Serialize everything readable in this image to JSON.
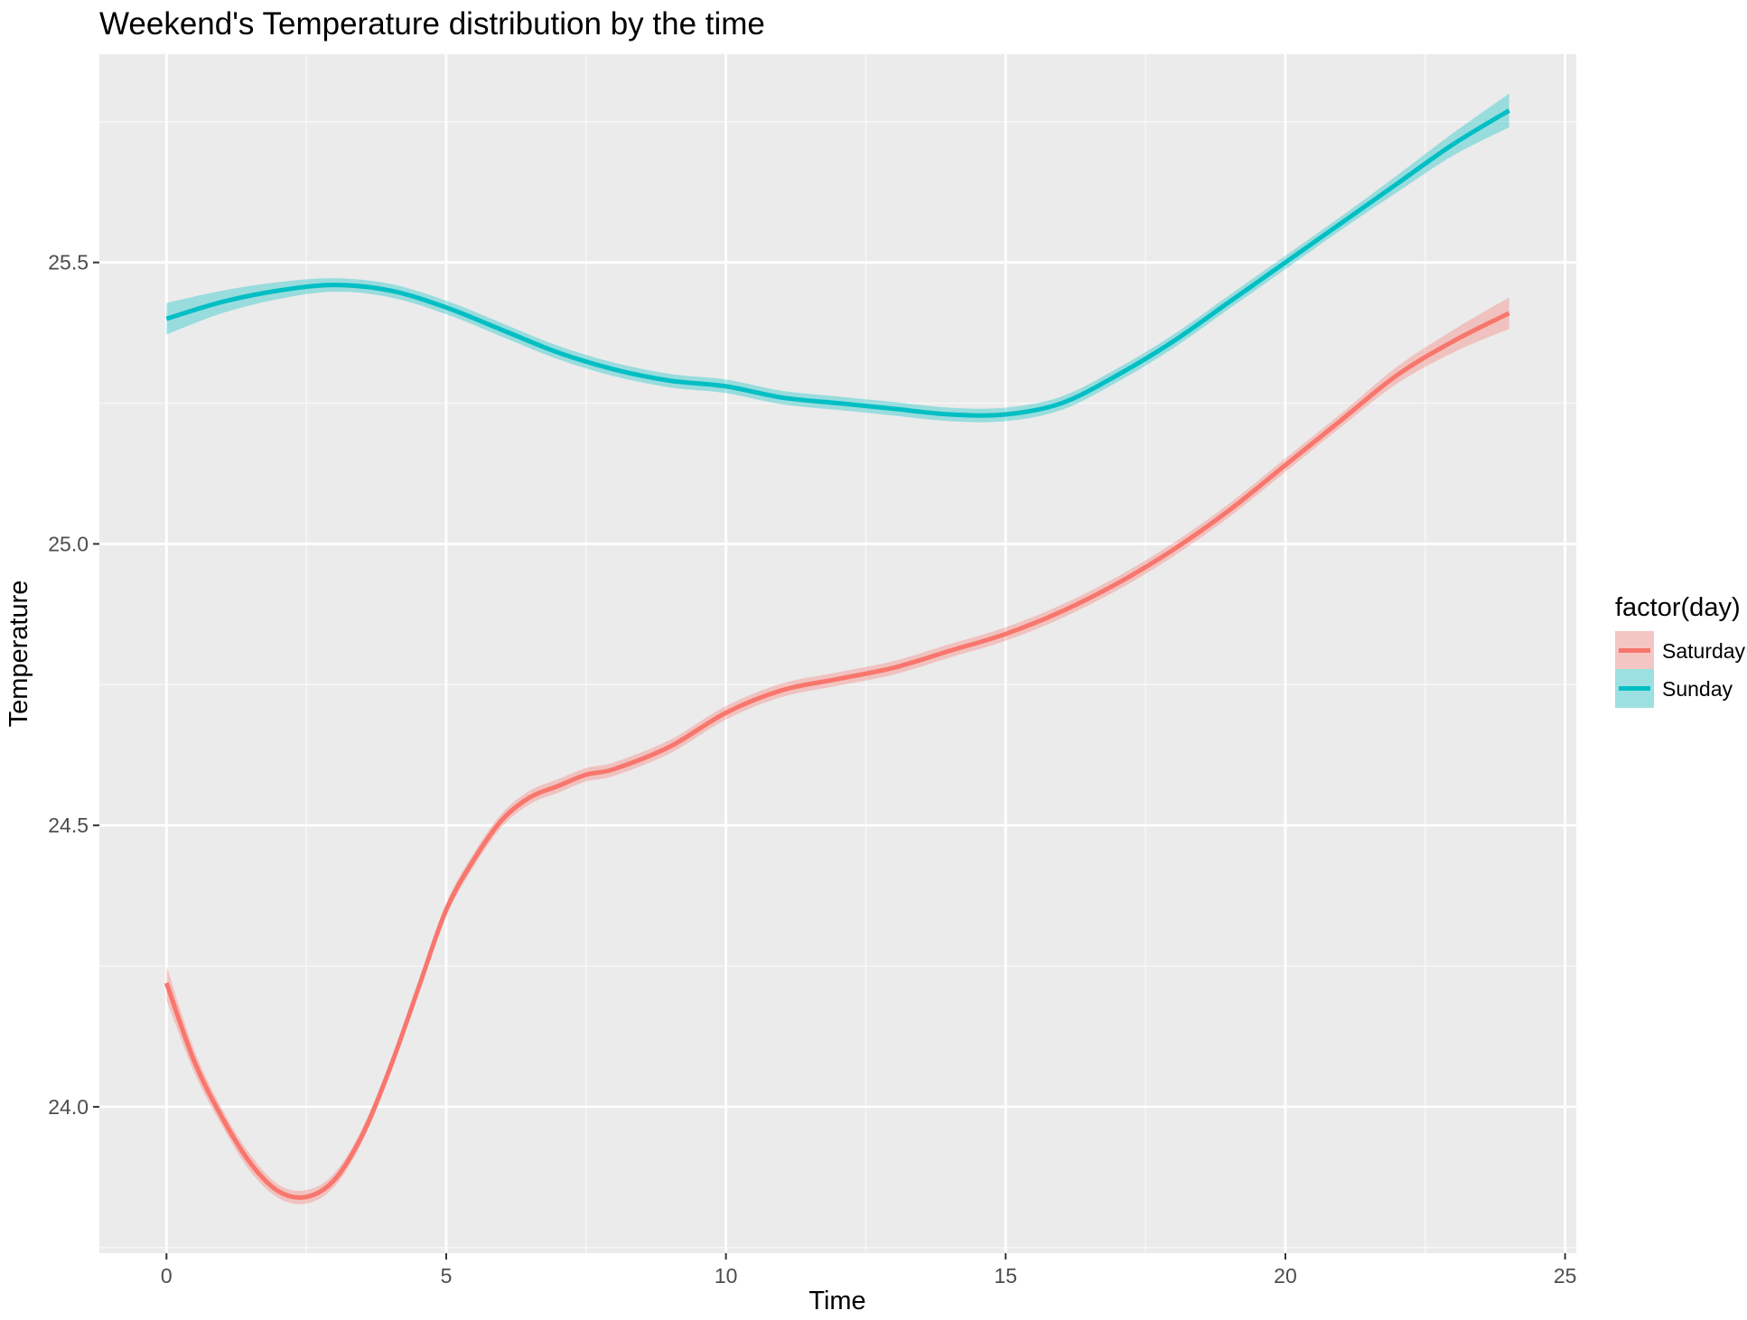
{
  "chart_data": {
    "type": "line",
    "title": "Weekend's Temperature distribution by the time",
    "xlabel": "Time",
    "ylabel": "Temperature",
    "xlim": [
      -1.2,
      25.2
    ],
    "ylim": [
      23.74,
      25.87
    ],
    "x_ticks": [
      0,
      5,
      10,
      15,
      20,
      25
    ],
    "x_tick_labels": [
      "0",
      "5",
      "10",
      "15",
      "20",
      "25"
    ],
    "y_ticks": [
      24.0,
      24.5,
      25.0,
      25.5
    ],
    "y_tick_labels": [
      "24.0",
      "24.5",
      "25.0",
      "25.5"
    ],
    "grid": true,
    "confidence_band": true,
    "legend": {
      "title": "factor(day)",
      "position": "right"
    },
    "series": [
      {
        "name": "Saturday",
        "color": "#F8766D",
        "x": [
          0,
          0.5,
          1,
          1.5,
          2,
          2.5,
          3,
          3.5,
          4,
          4.5,
          5,
          5.5,
          6,
          6.5,
          7,
          7.5,
          8,
          9,
          10,
          11,
          12,
          13,
          14,
          15,
          16,
          17,
          18,
          19,
          20,
          21,
          22,
          23,
          24
        ],
        "y": [
          24.22,
          24.08,
          23.98,
          23.9,
          23.85,
          23.84,
          23.87,
          23.95,
          24.07,
          24.21,
          24.35,
          24.44,
          24.51,
          24.55,
          24.57,
          24.59,
          24.6,
          24.64,
          24.7,
          24.74,
          24.76,
          24.78,
          24.81,
          24.84,
          24.88,
          24.93,
          24.99,
          25.06,
          25.14,
          25.22,
          25.3,
          25.36,
          25.41
        ],
        "band_halfwidth": [
          0.03,
          0.02,
          0.015,
          0.015,
          0.012,
          0.012,
          0.012,
          0.012,
          0.012,
          0.012,
          0.012,
          0.012,
          0.012,
          0.012,
          0.012,
          0.012,
          0.012,
          0.012,
          0.012,
          0.012,
          0.012,
          0.012,
          0.012,
          0.012,
          0.012,
          0.012,
          0.012,
          0.012,
          0.012,
          0.012,
          0.015,
          0.02,
          0.028
        ]
      },
      {
        "name": "Sunday",
        "color": "#00BFC4",
        "x": [
          0,
          1,
          2,
          3,
          4,
          5,
          6,
          7,
          8,
          9,
          10,
          11,
          12,
          13,
          14,
          15,
          16,
          17,
          18,
          19,
          20,
          21,
          22,
          23,
          24
        ],
        "y": [
          25.4,
          25.43,
          25.45,
          25.46,
          25.45,
          25.42,
          25.38,
          25.34,
          25.31,
          25.29,
          25.28,
          25.26,
          25.25,
          25.24,
          25.23,
          25.23,
          25.25,
          25.3,
          25.36,
          25.43,
          25.5,
          25.57,
          25.64,
          25.71,
          25.77
        ],
        "band_halfwidth": [
          0.028,
          0.02,
          0.015,
          0.012,
          0.012,
          0.012,
          0.012,
          0.012,
          0.012,
          0.012,
          0.012,
          0.012,
          0.012,
          0.012,
          0.012,
          0.012,
          0.012,
          0.012,
          0.012,
          0.012,
          0.012,
          0.012,
          0.015,
          0.02,
          0.03
        ]
      }
    ]
  }
}
